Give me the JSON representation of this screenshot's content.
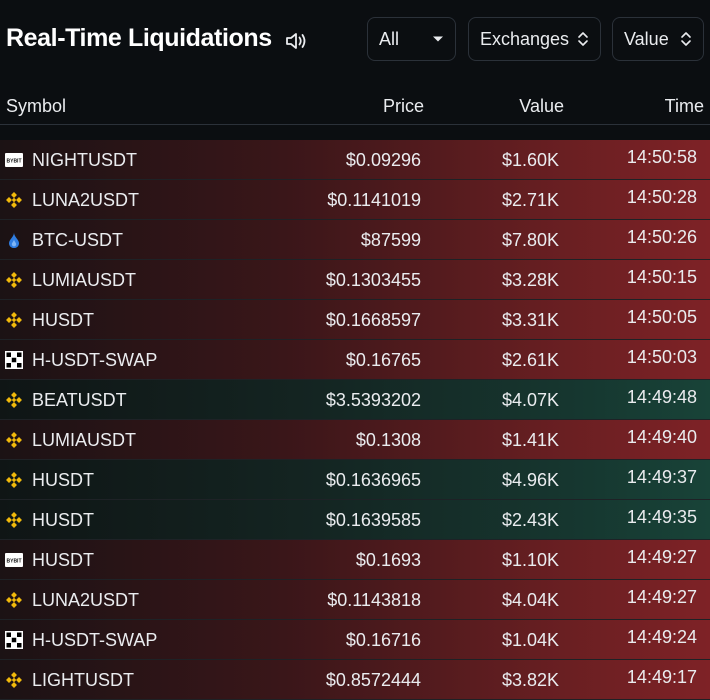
{
  "header": {
    "title": "Real-Time Liquidations",
    "filters": {
      "all": "All",
      "exchanges": "Exchanges",
      "value": "Value"
    }
  },
  "columns": {
    "symbol": "Symbol",
    "price": "Price",
    "value": "Value",
    "time": "Time"
  },
  "colors": {
    "long": "#7e2226",
    "short": "#184338",
    "binance_yellow": "#f0b90b"
  },
  "rows": [
    {
      "exchange_icon": "bybit-icon",
      "symbol": "NIGHTUSDT",
      "price": "$0.09296",
      "value": "$1.60K",
      "time": "14:50:58",
      "side": "long"
    },
    {
      "exchange_icon": "binance-icon",
      "symbol": "LUNA2USDT",
      "price": "$0.1141019",
      "value": "$2.71K",
      "time": "14:50:28",
      "side": "long"
    },
    {
      "exchange_icon": "hyperliquid-icon",
      "symbol": "BTC-USDT",
      "price": "$87599",
      "value": "$7.80K",
      "time": "14:50:26",
      "side": "long"
    },
    {
      "exchange_icon": "binance-icon",
      "symbol": "LUMIAUSDT",
      "price": "$0.1303455",
      "value": "$3.28K",
      "time": "14:50:15",
      "side": "long"
    },
    {
      "exchange_icon": "binance-icon",
      "symbol": "HUSDT",
      "price": "$0.1668597",
      "value": "$3.31K",
      "time": "14:50:05",
      "side": "long"
    },
    {
      "exchange_icon": "okx-icon",
      "symbol": "H-USDT-SWAP",
      "price": "$0.16765",
      "value": "$2.61K",
      "time": "14:50:03",
      "side": "long"
    },
    {
      "exchange_icon": "binance-icon",
      "symbol": "BEATUSDT",
      "price": "$3.5393202",
      "value": "$4.07K",
      "time": "14:49:48",
      "side": "short"
    },
    {
      "exchange_icon": "binance-icon",
      "symbol": "LUMIAUSDT",
      "price": "$0.1308",
      "value": "$1.41K",
      "time": "14:49:40",
      "side": "long"
    },
    {
      "exchange_icon": "binance-icon",
      "symbol": "HUSDT",
      "price": "$0.1636965",
      "value": "$4.96K",
      "time": "14:49:37",
      "side": "short"
    },
    {
      "exchange_icon": "binance-icon",
      "symbol": "HUSDT",
      "price": "$0.1639585",
      "value": "$2.43K",
      "time": "14:49:35",
      "side": "short"
    },
    {
      "exchange_icon": "bybit-icon",
      "symbol": "HUSDT",
      "price": "$0.1693",
      "value": "$1.10K",
      "time": "14:49:27",
      "side": "long"
    },
    {
      "exchange_icon": "binance-icon",
      "symbol": "LUNA2USDT",
      "price": "$0.1143818",
      "value": "$4.04K",
      "time": "14:49:27",
      "side": "long"
    },
    {
      "exchange_icon": "okx-icon",
      "symbol": "H-USDT-SWAP",
      "price": "$0.16716",
      "value": "$1.04K",
      "time": "14:49:24",
      "side": "long"
    },
    {
      "exchange_icon": "binance-icon",
      "symbol": "LIGHTUSDT",
      "price": "$0.8572444",
      "value": "$3.82K",
      "time": "14:49:17",
      "side": "long"
    }
  ]
}
